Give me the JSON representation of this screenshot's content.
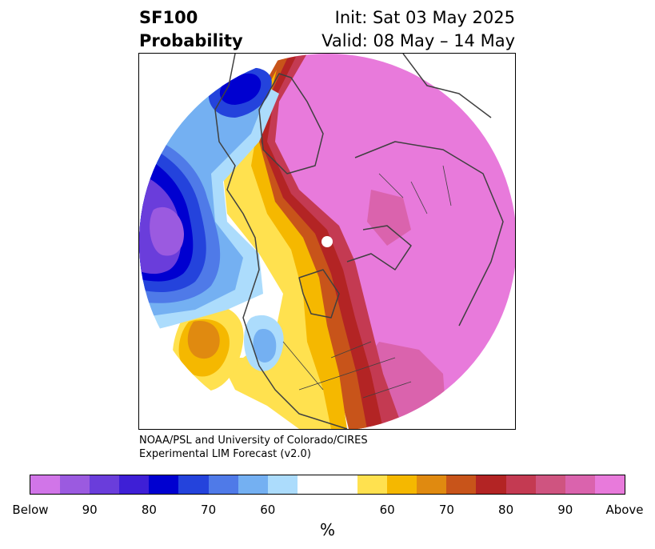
{
  "header": {
    "title_line1": "SF100",
    "title_line2": "Probability",
    "init_label": "Init: Sat 03 May 2025",
    "valid_label": "Valid: 08 May – 14 May"
  },
  "credit": {
    "line1": "NOAA/PSL and University of Colorado/CIRES",
    "line2": "Experimental LIM Forecast (v2.0)"
  },
  "colorbar": {
    "unit": "%",
    "colors": [
      "#d175e8",
      "#9b5ae0",
      "#6a3ddb",
      "#3e1fd6",
      "#0000d0",
      "#2443dc",
      "#4f7ae8",
      "#74b0f2",
      "#acdcfc",
      "#ffffff",
      "#ffe14f",
      "#f5b800",
      "#e08a10",
      "#c8541a",
      "#b32424",
      "#c43a52",
      "#cf5480",
      "#da63ad",
      "#e87adb"
    ],
    "ticks": [
      "Below",
      "90",
      "80",
      "70",
      "60",
      "60",
      "70",
      "80",
      "90",
      "Above"
    ]
  },
  "map": {
    "colors": {
      "above": "#e87adb",
      "above_90": "#da63ad",
      "above_80": "#c43a52",
      "above_75": "#b32424",
      "above_70": "#c8541a",
      "above_65": "#e08a10",
      "above_60": "#f5b800",
      "above_55": "#ffe14f",
      "below_55": "#acdcfc",
      "below_60": "#74b0f2",
      "below_65": "#4f7ae8",
      "below_70": "#2443dc",
      "below_75": "#0000d0",
      "below_80": "#3e1fd6",
      "below_85": "#6a3ddb",
      "below_90": "#9b5ae0",
      "below": "#d175e8",
      "coastline": "#404040"
    }
  }
}
